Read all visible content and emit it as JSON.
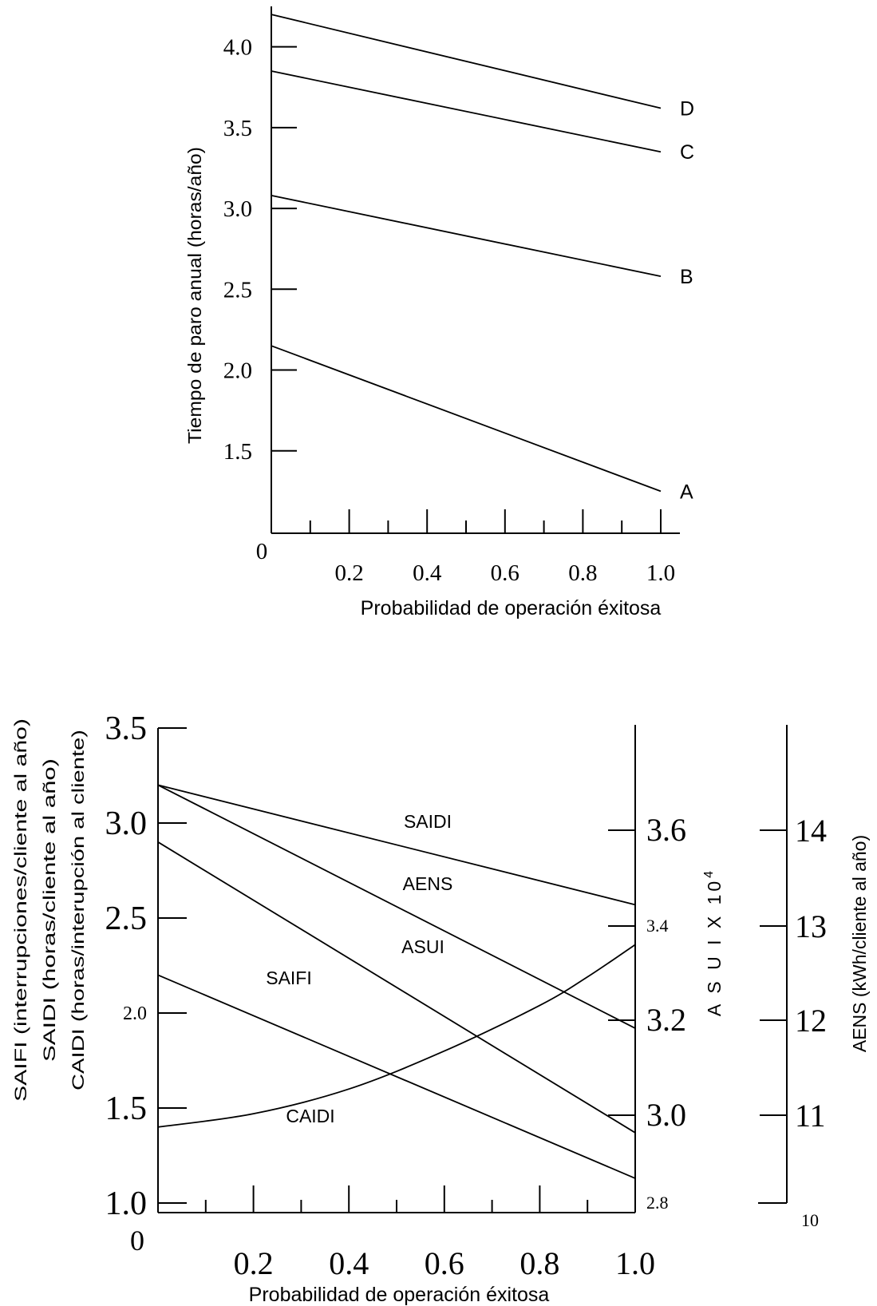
{
  "chart_data": [
    {
      "type": "line",
      "title": "",
      "xlabel": "Probabilidad de operación éxitosa",
      "ylabel": "Tiempo de paro anual (horas/año)",
      "x_origin_label": "0",
      "x_ticks": [
        "0.2",
        "0.4",
        "0.6",
        "0.8",
        "1.0"
      ],
      "y_ticks": [
        "1.5",
        "2.0",
        "2.5",
        "3.0",
        "3.5",
        "4.0"
      ],
      "xlim": [
        0,
        1.0
      ],
      "ylim": [
        1.0,
        4.25
      ],
      "series": [
        {
          "name": "A",
          "x": [
            0,
            1.0
          ],
          "y": [
            2.15,
            1.25
          ]
        },
        {
          "name": "B",
          "x": [
            0,
            1.0
          ],
          "y": [
            3.08,
            2.58
          ]
        },
        {
          "name": "C",
          "x": [
            0,
            1.0
          ],
          "y": [
            3.85,
            3.35
          ]
        },
        {
          "name": "D",
          "x": [
            0,
            1.0
          ],
          "y": [
            4.2,
            3.62
          ]
        }
      ]
    },
    {
      "type": "line",
      "title": "",
      "xlabel": "Probabilidad de operación éxitosa",
      "ylabel_lines": [
        "SAIFI (interrupciones/cliente al año)",
        "SAIDI (horas/cliente al año)",
        "CAIDI (horas/interupción al cliente)"
      ],
      "x_origin_label": "0",
      "x_ticks": [
        "0.2",
        "0.4",
        "0.6",
        "0.8",
        "1.0"
      ],
      "y_ticks": [
        "1.0",
        "1.5",
        "2.0",
        "2.5",
        "3.0",
        "3.5"
      ],
      "xlim": [
        0,
        1.0
      ],
      "ylim": [
        1.0,
        3.5
      ],
      "right_axis_asui": {
        "label": "A S U I X 10",
        "exponent": "4",
        "ticks": [
          "2.8",
          "3.0",
          "3.2",
          "3.4",
          "3.6"
        ]
      },
      "right_axis_aens": {
        "label": "AENS (kWh/cliente al año)",
        "ticks": [
          "10",
          "11",
          "12",
          "13",
          "14"
        ]
      },
      "series": [
        {
          "name": "SAIDI",
          "x": [
            0,
            1.0
          ],
          "y": [
            3.2,
            2.57
          ]
        },
        {
          "name": "AENS",
          "x": [
            0,
            1.0
          ],
          "y": [
            3.2,
            1.92
          ]
        },
        {
          "name": "ASUI",
          "x": [
            0,
            1.0
          ],
          "y": [
            2.9,
            1.37
          ]
        },
        {
          "name": "SAIFI",
          "x": [
            0,
            1.0
          ],
          "y": [
            2.2,
            1.13
          ]
        },
        {
          "name": "CAIDI",
          "x": [
            0,
            0.2,
            0.4,
            0.6,
            0.8,
            0.9,
            1.0
          ],
          "y": [
            1.4,
            1.47,
            1.6,
            1.8,
            2.04,
            2.19,
            2.36
          ]
        }
      ]
    }
  ]
}
